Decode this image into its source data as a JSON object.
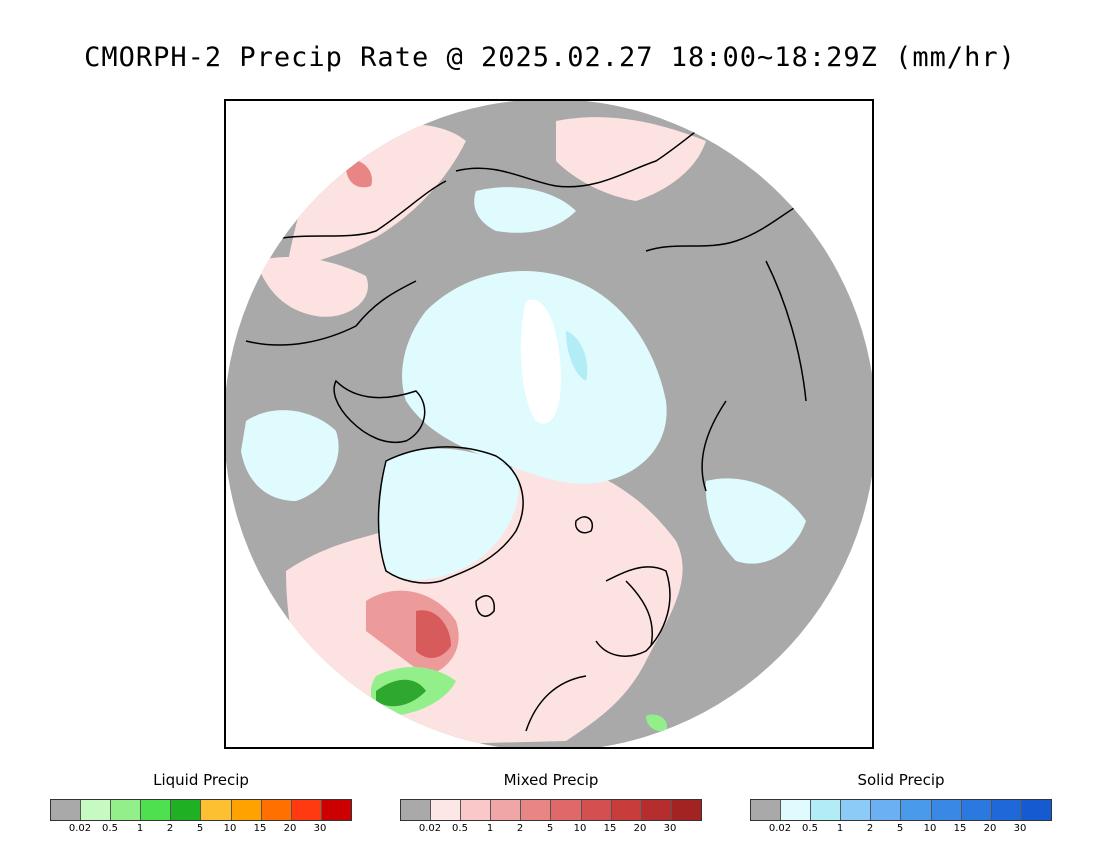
{
  "title": "CMORPH-2 Precip Rate @ 2025.02.27 18:00~18:29Z (mm/hr)",
  "colors": {
    "no_precip": "#a9a9a9",
    "ocean_background": "#a9a9a9",
    "coastline": "#000000"
  },
  "legends": [
    {
      "title": "Liquid Precip",
      "colors": [
        "#a9a9a9",
        "#c6fac2",
        "#93ef8a",
        "#4ee04e",
        "#20b024",
        "#fcc030",
        "#ffa200",
        "#ff7000",
        "#ff3a10",
        "#cc0000"
      ],
      "ticks": [
        "0.02",
        "0.5",
        "1",
        "2",
        "5",
        "10",
        "15",
        "20",
        "30"
      ]
    },
    {
      "title": "Mixed Precip",
      "colors": [
        "#a9a9a9",
        "#fde6e6",
        "#fac8c8",
        "#f0a6a6",
        "#e88585",
        "#e06868",
        "#d45050",
        "#c83c3c",
        "#b52d2d",
        "#a32222"
      ],
      "ticks": [
        "0.02",
        "0.5",
        "1",
        "2",
        "5",
        "10",
        "15",
        "20",
        "30"
      ]
    },
    {
      "title": "Solid Precip",
      "colors": [
        "#a9a9a9",
        "#e0fbfd",
        "#b2ecf7",
        "#8ccaf8",
        "#6ab0f2",
        "#4a9aec",
        "#3a88e6",
        "#2a78e0",
        "#1f68da",
        "#155ad0"
      ],
      "ticks": [
        "0.02",
        "0.5",
        "1",
        "2",
        "5",
        "10",
        "15",
        "20",
        "30"
      ]
    }
  ]
}
